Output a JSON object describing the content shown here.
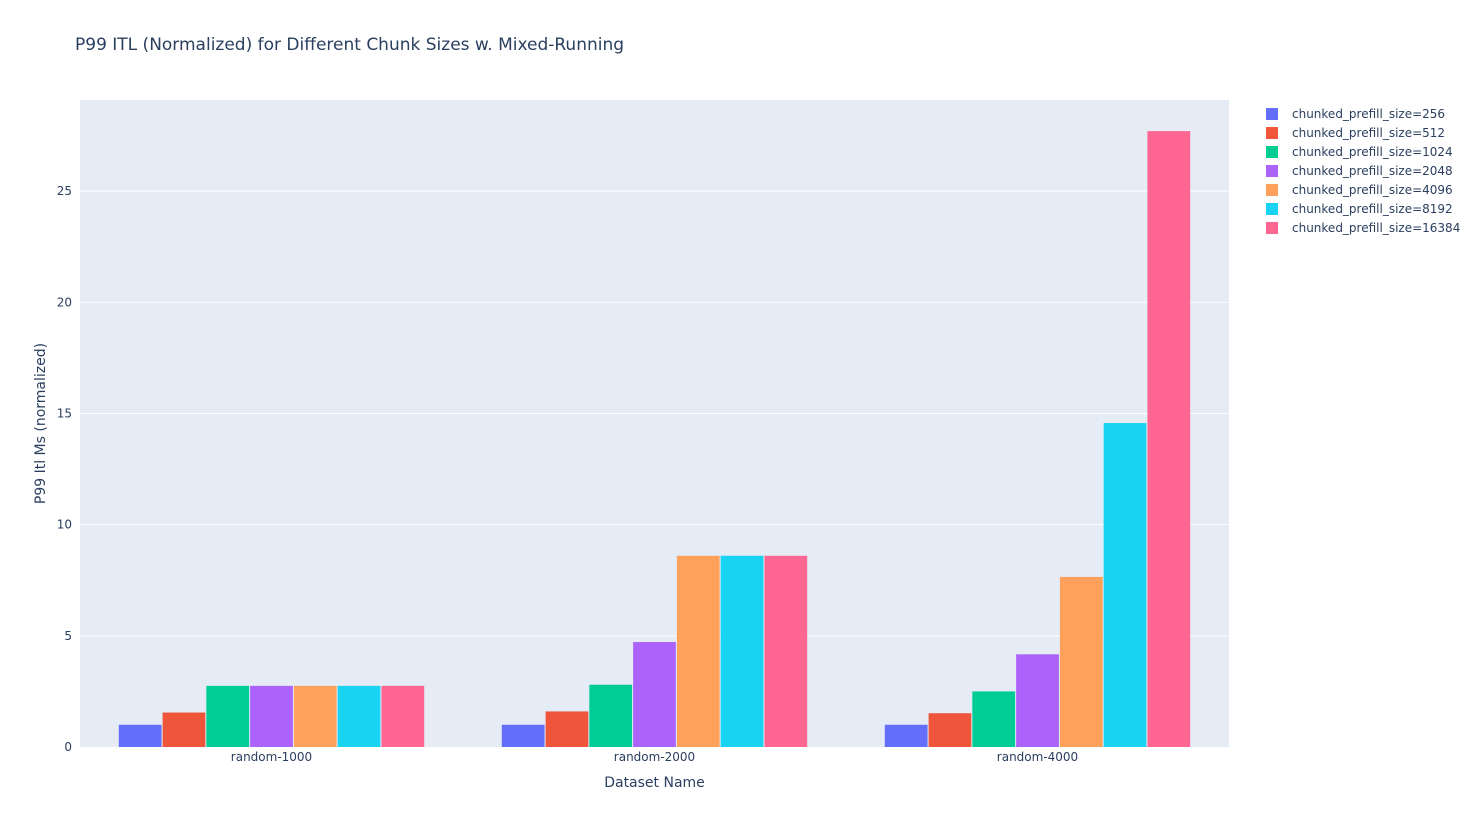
{
  "chart_data": {
    "type": "bar",
    "title": "P99 ITL (Normalized) for Different Chunk Sizes w. Mixed-Running",
    "xlabel": "Dataset Name",
    "ylabel": "P99 Itl Ms (normalized)",
    "categories": [
      "random-1000",
      "random-2000",
      "random-4000"
    ],
    "ylim": [
      0,
      29.1
    ],
    "yticks": [
      0,
      5,
      10,
      15,
      20,
      25
    ],
    "grid": true,
    "legend_position": "top-right",
    "plot_background": "#e5ecf6",
    "series": [
      {
        "name": "chunked_prefill_size=256",
        "color": "#636efa",
        "values": [
          1.0,
          1.0,
          1.0
        ]
      },
      {
        "name": "chunked_prefill_size=512",
        "color": "#ef553b",
        "values": [
          1.55,
          1.6,
          1.52
        ]
      },
      {
        "name": "chunked_prefill_size=1024",
        "color": "#00cc96",
        "values": [
          2.75,
          2.8,
          2.5
        ]
      },
      {
        "name": "chunked_prefill_size=2048",
        "color": "#ab63fa",
        "values": [
          2.75,
          4.72,
          4.17
        ]
      },
      {
        "name": "chunked_prefill_size=4096",
        "color": "#ffa15a",
        "values": [
          2.75,
          8.6,
          7.65
        ]
      },
      {
        "name": "chunked_prefill_size=8192",
        "color": "#19d3f3",
        "values": [
          2.75,
          8.6,
          14.57
        ]
      },
      {
        "name": "chunked_prefill_size=16384",
        "color": "#ff6692",
        "values": [
          2.75,
          8.6,
          27.7
        ]
      }
    ]
  }
}
